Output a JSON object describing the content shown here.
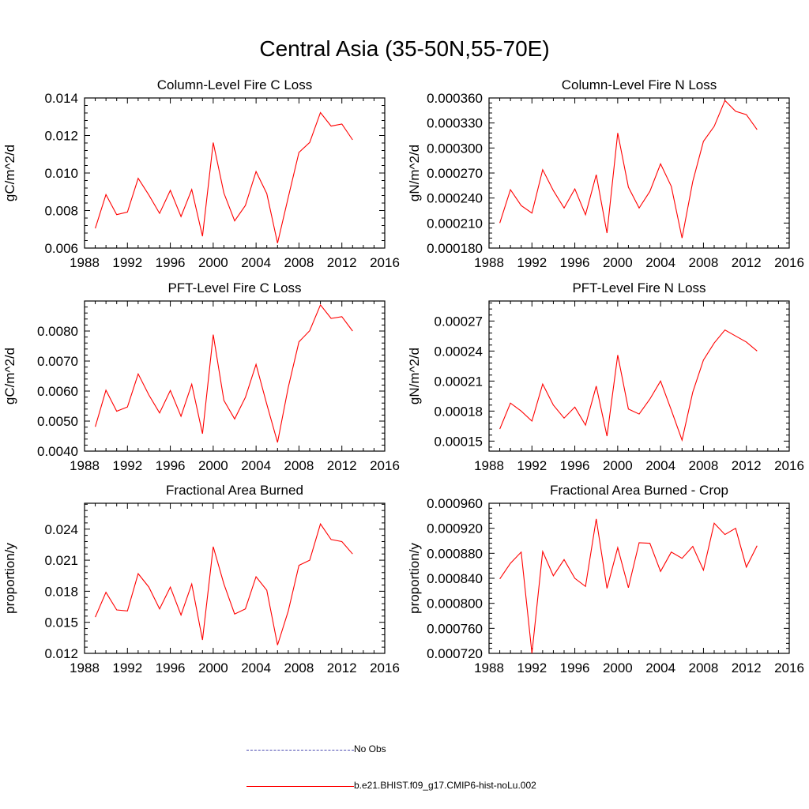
{
  "figure": {
    "title": "Central Asia (35-50N,55-70E)"
  },
  "legend": {
    "items": [
      {
        "label": "No Obs",
        "color": "#4a4ab0",
        "style": "dashed"
      },
      {
        "label": "b.e21.BHIST.f09_g17.CMIP6-hist-noLu.002",
        "color": "#ff0000",
        "style": "solid"
      }
    ]
  },
  "chart_data": [
    {
      "type": "line",
      "title": "Column-Level Fire C Loss",
      "xlabel": "",
      "ylabel": "gC/m^2/d",
      "xlim": [
        1988,
        2016
      ],
      "ylim": [
        0.006,
        0.014
      ],
      "xticks": [
        "1988",
        "1992",
        "1996",
        "2000",
        "2004",
        "2008",
        "2012",
        "2016"
      ],
      "yticks": [
        "0.006",
        "0.008",
        "0.010",
        "0.012",
        "0.014"
      ],
      "x": [
        1989,
        1990,
        1991,
        1992,
        1993,
        1994,
        1995,
        1996,
        1997,
        1998,
        1999,
        2000,
        2001,
        2002,
        2003,
        2004,
        2005,
        2006,
        2007,
        2008,
        2009,
        2010,
        2011,
        2012,
        2013
      ],
      "series": [
        {
          "name": "b.e21.BHIST.f09_g17.CMIP6-hist-noLu.002",
          "color": "#ff0000",
          "values": [
            0.00705,
            0.00885,
            0.00778,
            0.00792,
            0.00972,
            0.00883,
            0.00785,
            0.00908,
            0.00768,
            0.00912,
            0.00663,
            0.01162,
            0.00893,
            0.00745,
            0.00827,
            0.01008,
            0.0089,
            0.00626,
            0.00871,
            0.0111,
            0.01163,
            0.01322,
            0.0125,
            0.01261,
            0.01177
          ]
        }
      ]
    },
    {
      "type": "line",
      "title": "Column-Level Fire N Loss",
      "xlabel": "",
      "ylabel": "gN/m^2/d",
      "xlim": [
        1988,
        2016
      ],
      "ylim": [
        0.00018,
        0.00036
      ],
      "xticks": [
        "1988",
        "1992",
        "1996",
        "2000",
        "2004",
        "2008",
        "2012",
        "2016"
      ],
      "yticks": [
        "0.000180",
        "0.000210",
        "0.000240",
        "0.000270",
        "0.000300",
        "0.000330",
        "0.000360"
      ],
      "x": [
        1989,
        1990,
        1991,
        1992,
        1993,
        1994,
        1995,
        1996,
        1997,
        1998,
        1999,
        2000,
        2001,
        2002,
        2003,
        2004,
        2005,
        2006,
        2007,
        2008,
        2009,
        2010,
        2011,
        2012,
        2013
      ],
      "series": [
        {
          "name": "b.e21.BHIST.f09_g17.CMIP6-hist-noLu.002",
          "color": "#ff0000",
          "values": [
            0.00021,
            0.00025,
            0.000231,
            0.000222,
            0.000274,
            0.000249,
            0.000228,
            0.000251,
            0.00022,
            0.000268,
            0.000198,
            0.000318,
            0.000253,
            0.000228,
            0.000248,
            0.000281,
            0.000254,
            0.000192,
            0.00026,
            0.000308,
            0.000326,
            0.000357,
            0.000344,
            0.00034,
            0.000322
          ]
        }
      ]
    },
    {
      "type": "line",
      "title": "PFT-Level Fire C Loss",
      "xlabel": "",
      "ylabel": "gC/m^2/d",
      "xlim": [
        1988,
        2016
      ],
      "ylim": [
        0.004,
        0.009
      ],
      "xticks": [
        "1988",
        "1992",
        "1996",
        "2000",
        "2004",
        "2008",
        "2012",
        "2016"
      ],
      "yticks": [
        "0.0040",
        "0.0050",
        "0.0060",
        "0.0070",
        "0.0080"
      ],
      "x": [
        1989,
        1990,
        1991,
        1992,
        1993,
        1994,
        1995,
        1996,
        1997,
        1998,
        1999,
        2000,
        2001,
        2002,
        2003,
        2004,
        2005,
        2006,
        2007,
        2008,
        2009,
        2010,
        2011,
        2012,
        2013
      ],
      "series": [
        {
          "name": "b.e21.BHIST.f09_g17.CMIP6-hist-noLu.002",
          "color": "#ff0000",
          "values": [
            0.00481,
            0.00603,
            0.00533,
            0.00547,
            0.00657,
            0.00587,
            0.00527,
            0.00602,
            0.00516,
            0.00623,
            0.00458,
            0.00788,
            0.00569,
            0.00507,
            0.00579,
            0.00689,
            0.00556,
            0.00429,
            0.00613,
            0.00764,
            0.00801,
            0.00887,
            0.00842,
            0.00848,
            0.008
          ]
        }
      ]
    },
    {
      "type": "line",
      "title": "PFT-Level Fire N Loss",
      "xlabel": "",
      "ylabel": "gN/m^2/d",
      "xlim": [
        1988,
        2016
      ],
      "ylim": [
        0.00014,
        0.00029
      ],
      "xticks": [
        "1988",
        "1992",
        "1996",
        "2000",
        "2004",
        "2008",
        "2012",
        "2016"
      ],
      "yticks": [
        "0.00015",
        "0.00018",
        "0.00021",
        "0.00024",
        "0.00027"
      ],
      "x": [
        1989,
        1990,
        1991,
        1992,
        1993,
        1994,
        1995,
        1996,
        1997,
        1998,
        1999,
        2000,
        2001,
        2002,
        2003,
        2004,
        2005,
        2006,
        2007,
        2008,
        2009,
        2010,
        2011,
        2012,
        2013
      ],
      "series": [
        {
          "name": "b.e21.BHIST.f09_g17.CMIP6-hist-noLu.002",
          "color": "#ff0000",
          "values": [
            0.000162,
            0.000188,
            0.00018,
            0.00017,
            0.000207,
            0.000186,
            0.000173,
            0.000184,
            0.000166,
            0.000205,
            0.000155,
            0.000236,
            0.000182,
            0.000177,
            0.000192,
            0.00021,
            0.000181,
            0.000151,
            0.000199,
            0.000231,
            0.000248,
            0.000261,
            0.000255,
            0.000249,
            0.00024
          ]
        }
      ]
    },
    {
      "type": "line",
      "title": "Fractional Area Burned",
      "xlabel": "",
      "ylabel": "proportion/y",
      "xlim": [
        1988,
        2016
      ],
      "ylim": [
        0.012,
        0.0265
      ],
      "xticks": [
        "1988",
        "1992",
        "1996",
        "2000",
        "2004",
        "2008",
        "2012",
        "2016"
      ],
      "yticks": [
        "0.012",
        "0.015",
        "0.018",
        "0.021",
        "0.024"
      ],
      "x": [
        1989,
        1990,
        1991,
        1992,
        1993,
        1994,
        1995,
        1996,
        1997,
        1998,
        1999,
        2000,
        2001,
        2002,
        2003,
        2004,
        2005,
        2006,
        2007,
        2008,
        2009,
        2010,
        2011,
        2012,
        2013
      ],
      "series": [
        {
          "name": "b.e21.BHIST.f09_g17.CMIP6-hist-noLu.002",
          "color": "#ff0000",
          "values": [
            0.0155,
            0.0179,
            0.0162,
            0.0161,
            0.0197,
            0.0184,
            0.0163,
            0.0184,
            0.0157,
            0.0187,
            0.0133,
            0.0223,
            0.0187,
            0.0158,
            0.0163,
            0.0194,
            0.0181,
            0.0128,
            0.0161,
            0.0205,
            0.021,
            0.0245,
            0.023,
            0.0228,
            0.0216
          ]
        }
      ]
    },
    {
      "type": "line",
      "title": "Fractional Area Burned - Crop",
      "xlabel": "",
      "ylabel": "proportion/y",
      "xlim": [
        1988,
        2016
      ],
      "ylim": [
        0.00072,
        0.00096
      ],
      "xticks": [
        "1988",
        "1992",
        "1996",
        "2000",
        "2004",
        "2008",
        "2012",
        "2016"
      ],
      "yticks": [
        "0.000720",
        "0.000760",
        "0.000800",
        "0.000840",
        "0.000880",
        "0.000920",
        "0.000960"
      ],
      "x": [
        1989,
        1990,
        1991,
        1992,
        1993,
        1994,
        1995,
        1996,
        1997,
        1998,
        1999,
        2000,
        2001,
        2002,
        2003,
        2004,
        2005,
        2006,
        2007,
        2008,
        2009,
        2010,
        2011,
        2012,
        2013
      ],
      "series": [
        {
          "name": "b.e21.BHIST.f09_g17.CMIP6-hist-noLu.002",
          "color": "#ff0000",
          "values": [
            0.000839,
            0.000864,
            0.000882,
            0.00072,
            0.000883,
            0.000844,
            0.00087,
            0.00084,
            0.000827,
            0.000935,
            0.000824,
            0.000889,
            0.000825,
            0.000897,
            0.000896,
            0.000851,
            0.000882,
            0.000872,
            0.000891,
            0.000853,
            0.000928,
            0.00091,
            0.00092,
            0.000858,
            0.000892
          ]
        }
      ]
    }
  ]
}
